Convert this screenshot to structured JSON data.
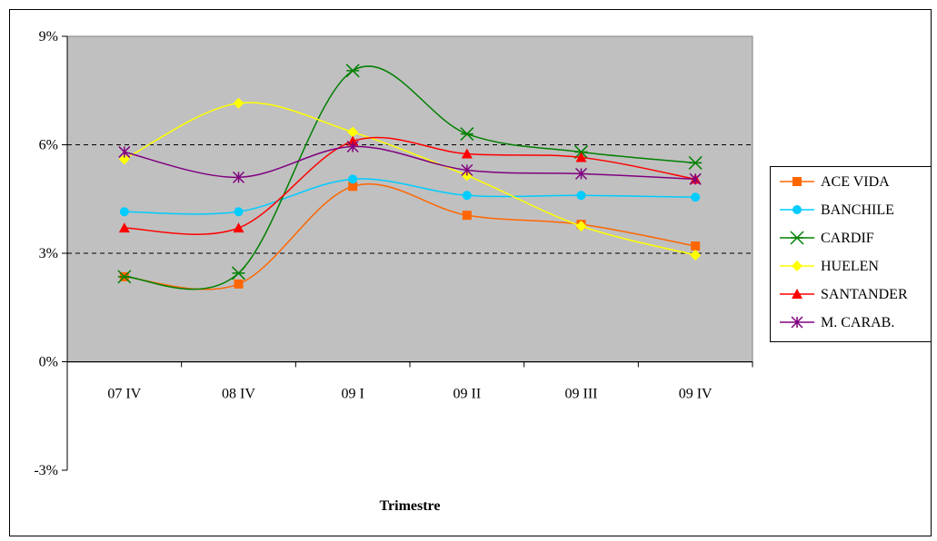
{
  "chart_data": {
    "type": "line",
    "title": "",
    "xlabel": "Trimestre",
    "ylabel": "",
    "categories": [
      "07 IV",
      "08 IV",
      "09 I",
      "09 II",
      "09 III",
      "09 IV"
    ],
    "ylim": [
      -3,
      9
    ],
    "yticks": [
      {
        "value": 9,
        "label": "9%"
      },
      {
        "value": 6,
        "label": "6%"
      },
      {
        "value": 3,
        "label": "3%"
      },
      {
        "value": 0,
        "label": "0%"
      },
      {
        "value": -3,
        "label": "-3%"
      }
    ],
    "grid": "dashed lines at 3% and 6%",
    "legend_position": "right",
    "plot_background": "#c0c0c0",
    "series": [
      {
        "name": "ACE VIDA",
        "color": "#ff6600",
        "marker": "square",
        "values": [
          2.35,
          2.15,
          4.85,
          4.05,
          3.8,
          3.2
        ]
      },
      {
        "name": "BANCHILE",
        "color": "#00ccff",
        "marker": "circle",
        "values": [
          4.15,
          4.15,
          5.05,
          4.6,
          4.6,
          4.55
        ]
      },
      {
        "name": "CARDIF",
        "color": "#008000",
        "marker": "asterisk",
        "values": [
          2.35,
          2.45,
          8.05,
          6.3,
          5.8,
          5.5
        ]
      },
      {
        "name": "HUELEN",
        "color": "#ffff00",
        "marker": "diamond",
        "values": [
          5.6,
          7.15,
          6.35,
          5.15,
          3.75,
          2.95
        ]
      },
      {
        "name": "SANTANDER",
        "color": "#ff0000",
        "marker": "triangle",
        "values": [
          3.7,
          3.7,
          6.1,
          5.75,
          5.65,
          5.05
        ]
      },
      {
        "name": "M. CARAB.",
        "color": "#800080",
        "marker": "star",
        "values": [
          5.8,
          5.1,
          5.95,
          5.3,
          5.2,
          5.05
        ]
      }
    ]
  }
}
